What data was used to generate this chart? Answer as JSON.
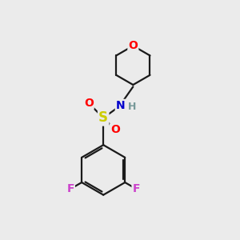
{
  "bg_color": "#ebebeb",
  "bond_color": "#1a1a1a",
  "bond_width": 1.6,
  "atom_colors": {
    "O": "#ff0000",
    "N": "#0000cc",
    "S": "#cccc00",
    "F": "#cc44cc",
    "H": "#779999",
    "C": "#1a1a1a"
  },
  "font_size": 10,
  "fig_size": [
    3.0,
    3.0
  ],
  "dpi": 100,
  "xlim": [
    0,
    10
  ],
  "ylim": [
    0,
    10
  ]
}
